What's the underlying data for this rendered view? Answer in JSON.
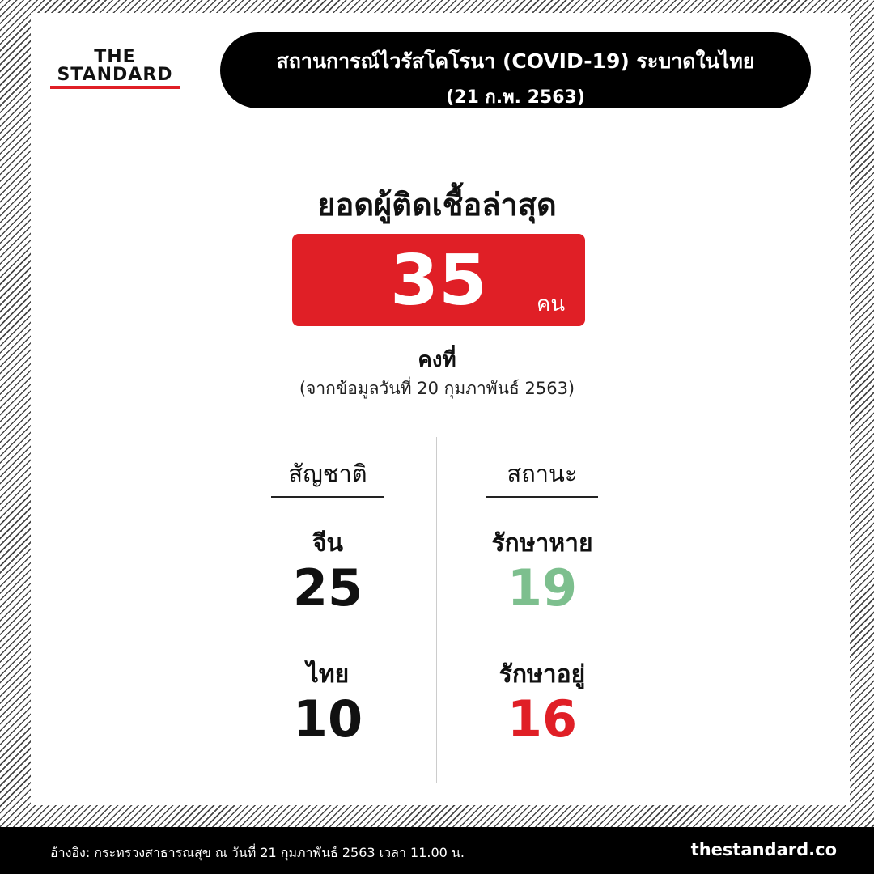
{
  "logo": {
    "line1": "THE",
    "line2": "STANDARD"
  },
  "header": {
    "title": "สถานการณ์ไวรัสโคโรนา (COVID-19) ระบาดในไทย",
    "subtitle": "(21 ก.พ. 2563)"
  },
  "total": {
    "heading": "ยอดผู้ติดเชื้อล่าสุด",
    "value": 35,
    "unit": "คน",
    "status": "คงที่",
    "note": "(จากข้อมูลวันที่ 20 กุมภาพันธ์ 2563)"
  },
  "columns": [
    {
      "heading": "สัญชาติ",
      "items": [
        {
          "label": "จีน",
          "value": 25,
          "color": "#111111"
        },
        {
          "label": "ไทย",
          "value": 10,
          "color": "#111111"
        }
      ]
    },
    {
      "heading": "สถานะ",
      "items": [
        {
          "label": "รักษาหาย",
          "value": 19,
          "color": "#7dbf8e"
        },
        {
          "label": "รักษาอยู่",
          "value": 16,
          "color": "#e01f26"
        }
      ]
    }
  ],
  "footer": {
    "source": "อ้างอิง: กระทรวงสาธารณสุข ณ วันที่ 21 กุมภาพันธ์ 2563 เวลา 11.00 น.",
    "site": "thestandard.co"
  }
}
